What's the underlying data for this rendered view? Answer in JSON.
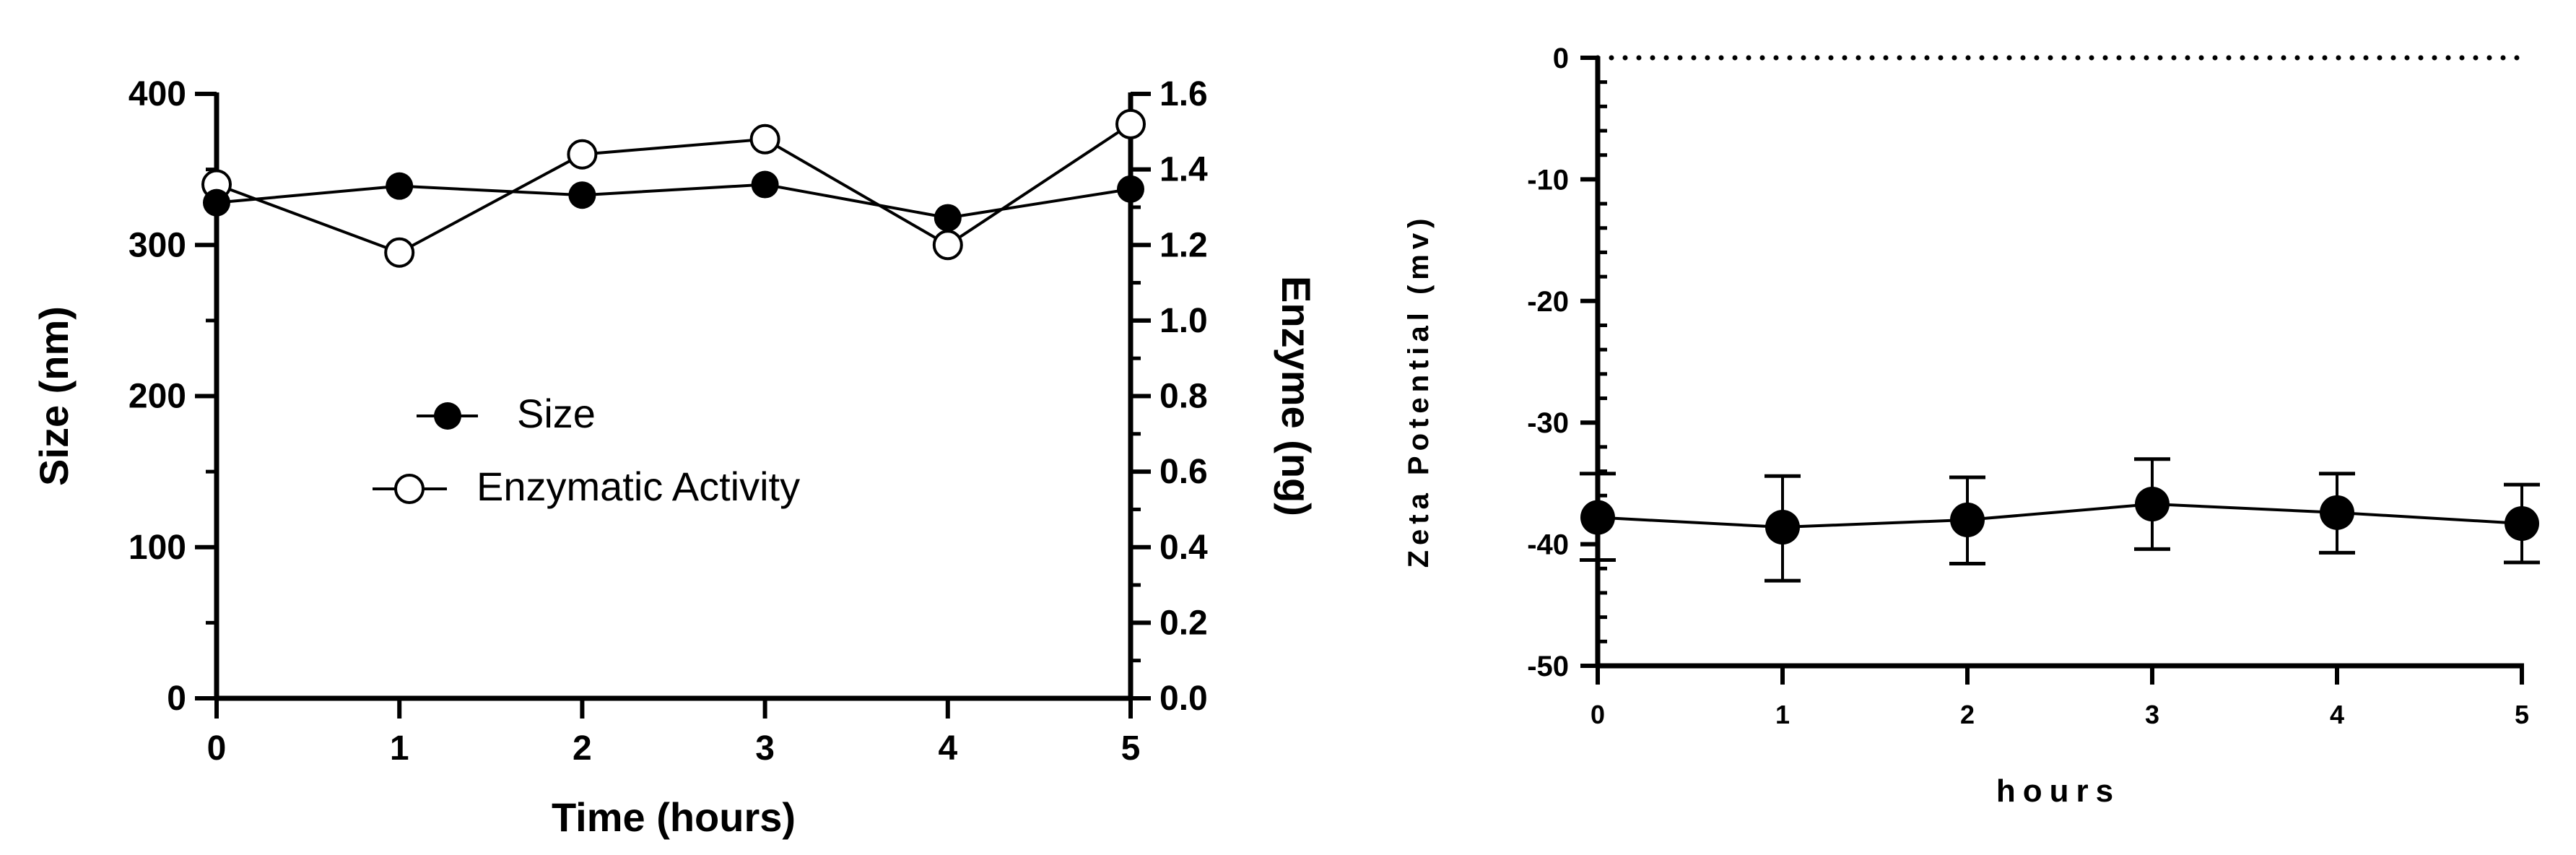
{
  "chart_data": [
    {
      "type": "line",
      "xlabel": "Time (hours)",
      "ylabel": "Size (nm)",
      "y2label": "Enzyme (ng)",
      "x": [
        0,
        1,
        2,
        3,
        4,
        5
      ],
      "xlim": [
        0,
        5
      ],
      "ylim": [
        0,
        400
      ],
      "y2lim": [
        0,
        1.6
      ],
      "x_ticks": [
        "0",
        "1",
        "2",
        "3",
        "4",
        "5"
      ],
      "y_ticks": [
        "0",
        "100",
        "200",
        "300",
        "400"
      ],
      "y2_ticks": [
        "0.0",
        "0.2",
        "0.4",
        "0.6",
        "0.8",
        "1.0",
        "1.2",
        "1.4",
        "1.6"
      ],
      "legend": "center-left",
      "series": [
        {
          "name": "Size",
          "axis": "left",
          "marker": "filled-circle",
          "values": [
            328,
            339,
            333,
            340,
            318,
            337
          ]
        },
        {
          "name": "Enzymatic Activity",
          "axis": "right",
          "marker": "open-circle",
          "values": [
            1.36,
            1.18,
            1.44,
            1.48,
            1.2,
            1.52
          ]
        }
      ]
    },
    {
      "type": "line",
      "xlabel": "hours",
      "ylabel": "Zeta Potential (mv)",
      "x": [
        0,
        1,
        2,
        3,
        4,
        5
      ],
      "xlim": [
        0,
        5
      ],
      "ylim": [
        -50,
        0
      ],
      "x_ticks": [
        "0",
        "1",
        "2",
        "3",
        "4",
        "5"
      ],
      "y_ticks": [
        "0",
        "-10",
        "-20",
        "-30",
        "-40",
        "-50"
      ],
      "reference_line": {
        "y": 0,
        "style": "dotted"
      },
      "series": [
        {
          "marker": "filled-circle",
          "values": [
            -37.8,
            -38.6,
            -38.0,
            -36.7,
            -37.4,
            -38.3
          ],
          "error_low": [
            -41.3,
            -43.0,
            -41.6,
            -40.4,
            -40.7,
            -41.5
          ],
          "error_high": [
            -34.2,
            -34.4,
            -34.5,
            -33.0,
            -34.2,
            -35.1
          ]
        }
      ]
    }
  ]
}
